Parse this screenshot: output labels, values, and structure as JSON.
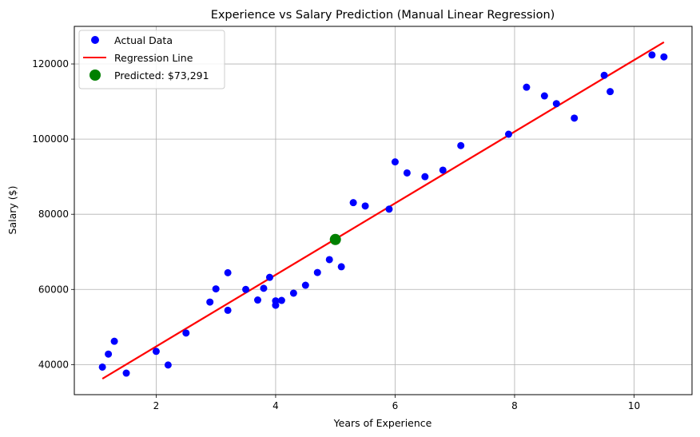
{
  "chart_data": {
    "type": "scatter",
    "title": "Experience vs Salary Prediction (Manual Linear Regression)",
    "xlabel": "Years of Experience",
    "ylabel": "Salary ($)",
    "xlim": [
      0.63,
      10.97
    ],
    "ylim": [
      32000,
      130000
    ],
    "xticks": [
      2,
      4,
      6,
      8,
      10
    ],
    "yticks": [
      40000,
      60000,
      80000,
      100000,
      120000
    ],
    "grid": true,
    "legend_position": "top-left",
    "series": [
      {
        "name": "Actual Data",
        "kind": "scatter",
        "color": "#0000ff",
        "x": [
          1.1,
          1.3,
          1.5,
          2.0,
          2.2,
          2.9,
          3.0,
          3.2,
          3.2,
          3.7,
          3.9,
          4.0,
          4.0,
          4.1,
          4.5,
          4.9,
          5.1,
          5.3,
          5.9,
          6.0,
          6.8,
          7.1,
          7.9,
          8.2,
          8.7,
          9.0,
          9.5,
          9.6,
          10.3,
          10.5,
          1.2,
          2.5,
          3.5,
          3.8,
          4.3,
          4.7,
          5.5,
          6.2,
          6.5,
          8.5
        ],
        "y": [
          39343,
          46205,
          37731,
          43525,
          39891,
          56642,
          60150,
          54445,
          64445,
          57189,
          63218,
          55794,
          56957,
          57081,
          61111,
          67938,
          66029,
          83088,
          81363,
          93940,
          91738,
          98273,
          101302,
          113812,
          109431,
          105582,
          116969,
          112635,
          122391,
          121872,
          42800,
          48400,
          60000,
          60300,
          59000,
          64500,
          82200,
          91000,
          90000,
          111500
        ]
      },
      {
        "name": "Regression Line",
        "kind": "line",
        "color": "#ff0000",
        "x": [
          1.1,
          10.5
        ],
        "y": [
          36250,
          125800
        ]
      },
      {
        "name": "Predicted: $73,291",
        "kind": "point",
        "color": "#008000",
        "x": [
          5.0
        ],
        "y": [
          73291
        ]
      }
    ]
  }
}
